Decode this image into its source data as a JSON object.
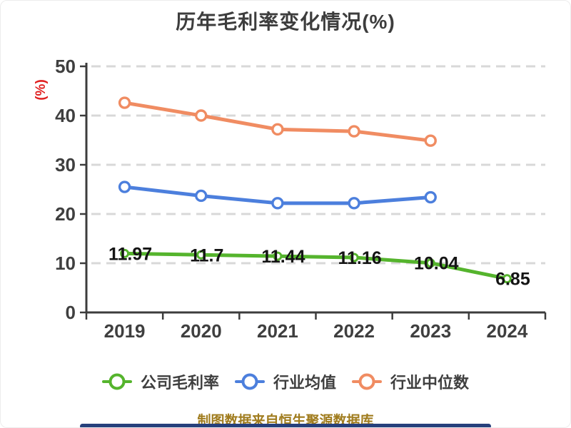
{
  "title": "历年毛利率变化情况(%)",
  "caption": "制图数据来自恒生聚源数据库",
  "colors": {
    "company": "#55b42d",
    "industry_avg": "#4c7fdd",
    "industry_median": "#f08c62",
    "grid": "#d8d8d8",
    "axis": "#3c3c3c",
    "ylabel": "#e02020",
    "caption": "#a07c1e",
    "bottom_bar": "#26407c"
  },
  "chart_data": {
    "type": "line",
    "title": "历年毛利率变化情况(%)",
    "ylabel": "(%)",
    "xlabel": "",
    "ylim": [
      0,
      50
    ],
    "yticks": [
      0,
      10,
      20,
      30,
      40,
      50
    ],
    "grid": "horizontal-dashed",
    "legend_position": "bottom",
    "categories": [
      "2019",
      "2020",
      "2021",
      "2022",
      "2023",
      "2024"
    ],
    "series": [
      {
        "name": "公司毛利率",
        "color": "#55b42d",
        "values": [
          11.97,
          11.7,
          11.44,
          11.16,
          10.04,
          6.85
        ],
        "labels": [
          "11.97",
          "11.7",
          "11.44",
          "11.16",
          "10.04",
          "6.85"
        ],
        "show_labels": true
      },
      {
        "name": "行业均值",
        "color": "#4c7fdd",
        "values": [
          25.5,
          23.7,
          22.2,
          22.2,
          23.4,
          null
        ],
        "show_labels": false
      },
      {
        "name": "行业中位数",
        "color": "#f08c62",
        "values": [
          42.6,
          40,
          37.2,
          36.8,
          34.9,
          null
        ],
        "show_labels": false
      }
    ]
  }
}
